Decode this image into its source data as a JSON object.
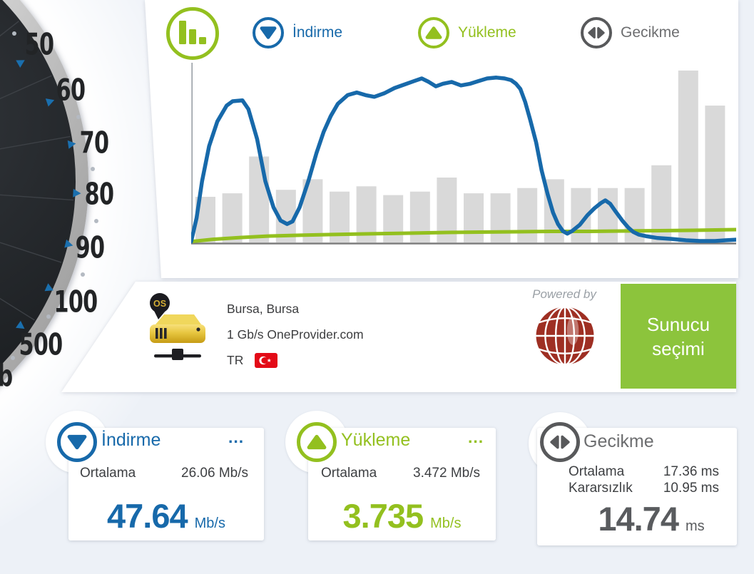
{
  "colors": {
    "accent_blue": "#1769aa",
    "accent_green": "#93c01f",
    "accent_gray": "#58595b",
    "bar_gray": "#d9d9d9",
    "button_green": "#8cc43c",
    "flag_red": "#e30a17",
    "logo_red": "#9e2f23",
    "page_background": "#edf1f7"
  },
  "gauge": {
    "labels": [
      "50",
      "60",
      "70",
      "80",
      "90",
      "100",
      "500"
    ],
    "partial_label": "b"
  },
  "legend": {
    "chart_icon": "bar-chart-icon",
    "items": [
      {
        "label": "İndirme",
        "color": "#1769aa",
        "icon": "arrow-down"
      },
      {
        "label": "Yükleme",
        "color": "#93c01f",
        "icon": "arrow-up"
      },
      {
        "label": "Gecikme",
        "color": "#6d6e70",
        "icon": "arrows-left-right"
      }
    ]
  },
  "server": {
    "location": "Bursa, Bursa",
    "provider": "1 Gb/s OneProvider.com",
    "country_code": "TR",
    "flag": "turkey-flag",
    "powered_by": "Powered by",
    "button_label_line1": "Sunucu",
    "button_label_line2": "seçimi"
  },
  "cards": {
    "download": {
      "title": "İndirme",
      "menu_dots": "...",
      "rows": [
        {
          "label": "Ortalama",
          "value": "26.06 Mb/s"
        }
      ],
      "main_value": "47.64",
      "main_unit": "Mb/s"
    },
    "upload": {
      "title": "Yükleme",
      "menu_dots": "...",
      "rows": [
        {
          "label": "Ortalama",
          "value": "3.472 Mb/s"
        }
      ],
      "main_value": "3.735",
      "main_unit": "Mb/s"
    },
    "latency": {
      "title": "Gecikme",
      "rows": [
        {
          "label": "Ortalama",
          "value": "17.36 ms"
        },
        {
          "label": "Kararsızlık",
          "value": "10.95 ms"
        }
      ],
      "main_value": "14.74",
      "main_unit": "ms"
    }
  },
  "chart_data": {
    "type": "composite",
    "note": "speed-test time series; axes have no visible tick labels; y values are percent of plot height",
    "legend_position": "top",
    "series": [
      {
        "name": "İndirme",
        "type": "line",
        "color": "#1769aa",
        "unit": "Mb/s",
        "points_pct": [
          [
            0,
            0.5
          ],
          [
            1,
            14
          ],
          [
            2,
            35
          ],
          [
            3.3,
            55
          ],
          [
            4.8,
            69
          ],
          [
            6.5,
            78
          ],
          [
            7.6,
            80.5
          ],
          [
            9.4,
            81
          ],
          [
            10.5,
            76
          ],
          [
            12.1,
            59
          ],
          [
            13.6,
            35
          ],
          [
            15.1,
            20
          ],
          [
            16.4,
            12.5
          ],
          [
            17.6,
            10.5
          ],
          [
            18.6,
            12
          ],
          [
            19.9,
            20
          ],
          [
            21.5,
            35
          ],
          [
            23,
            51
          ],
          [
            24.3,
            63
          ],
          [
            25.6,
            72
          ],
          [
            26.9,
            79
          ],
          [
            28.7,
            84
          ],
          [
            30.4,
            85.5
          ],
          [
            32,
            84
          ],
          [
            33.6,
            83
          ],
          [
            35.4,
            85
          ],
          [
            37.3,
            88
          ],
          [
            39.1,
            90
          ],
          [
            40.9,
            92
          ],
          [
            42.3,
            93.5
          ],
          [
            43.6,
            91.5
          ],
          [
            44.9,
            89
          ],
          [
            46.2,
            90.5
          ],
          [
            47.8,
            91.5
          ],
          [
            49.5,
            89.5
          ],
          [
            51.2,
            90.5
          ],
          [
            52.7,
            92
          ],
          [
            54.3,
            93.5
          ],
          [
            56,
            94
          ],
          [
            57.5,
            93.5
          ],
          [
            58.7,
            92.5
          ],
          [
            59.6,
            90.5
          ],
          [
            60.4,
            87.5
          ],
          [
            61.3,
            80
          ],
          [
            62.2,
            70
          ],
          [
            63.3,
            57
          ],
          [
            64.3,
            41
          ],
          [
            65.4,
            27.5
          ],
          [
            66.4,
            17
          ],
          [
            67.3,
            10.5
          ],
          [
            68.2,
            6.5
          ],
          [
            69,
            5
          ],
          [
            69.9,
            6.5
          ],
          [
            71.3,
            10
          ],
          [
            72.7,
            15.5
          ],
          [
            74,
            19.5
          ],
          [
            75.2,
            22.5
          ],
          [
            76,
            24
          ],
          [
            76.9,
            22
          ],
          [
            77.9,
            17.5
          ],
          [
            79.1,
            12.5
          ],
          [
            80.2,
            8.5
          ],
          [
            81.1,
            6
          ],
          [
            82.1,
            4.5
          ],
          [
            83.6,
            3.5
          ],
          [
            85.6,
            2.5
          ],
          [
            88.2,
            2
          ],
          [
            90.8,
            1.2
          ],
          [
            93.4,
            0.8
          ],
          [
            96.1,
            0.8
          ],
          [
            98,
            1.2
          ],
          [
            100,
            1.6
          ]
        ]
      },
      {
        "name": "Yükleme",
        "type": "line",
        "color": "#93c01f",
        "unit": "Mb/s",
        "points_pct": [
          [
            0,
            0.5
          ],
          [
            4,
            1.8
          ],
          [
            9,
            2.8
          ],
          [
            14,
            3.6
          ],
          [
            20,
            4.1
          ],
          [
            26,
            4.5
          ],
          [
            33,
            4.9
          ],
          [
            40,
            5.3
          ],
          [
            47,
            5.7
          ],
          [
            53,
            5.9
          ],
          [
            60,
            6.1
          ],
          [
            66,
            6.3
          ],
          [
            73,
            6.3
          ],
          [
            79,
            6.5
          ],
          [
            86,
            6.7
          ],
          [
            92,
            6.9
          ],
          [
            100,
            7.3
          ]
        ]
      },
      {
        "name": "Gecikme",
        "type": "bar",
        "color": "#d9d9d9",
        "unit": "ms",
        "values_pct": [
          26,
          28,
          49,
          30,
          36,
          29,
          32,
          27,
          29,
          37,
          28,
          28,
          31,
          36,
          31,
          31,
          31,
          44,
          98,
          78
        ]
      }
    ]
  }
}
